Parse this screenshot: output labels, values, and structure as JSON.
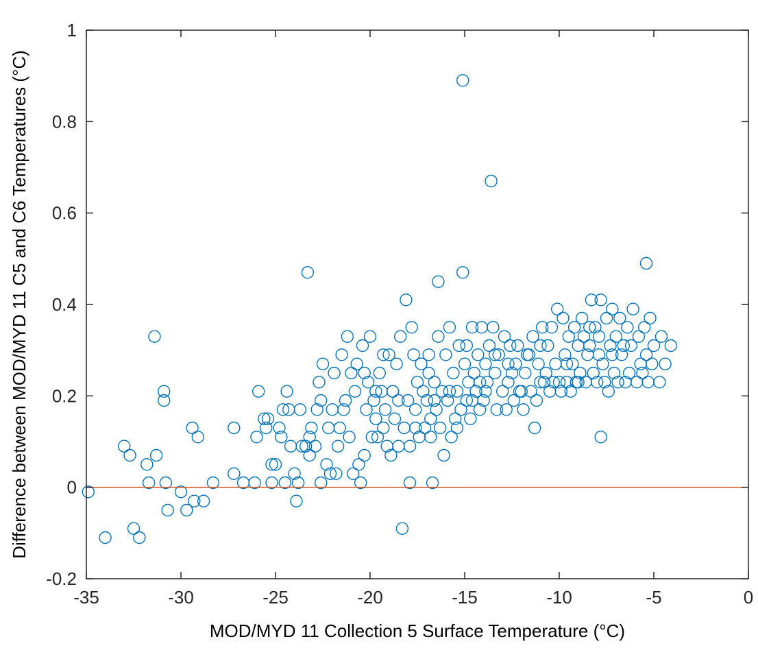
{
  "chart_data": {
    "type": "scatter",
    "title": "",
    "xlabel": "MOD/MYD 11 Collection 5 Surface Temperature (°C)",
    "ylabel": "Difference between MOD/MYD 11 C5 and C6 Temperatures (°C)",
    "xlim": [
      -35,
      0
    ],
    "ylim": [
      -0.2,
      1
    ],
    "xticks": [
      -35,
      -30,
      -25,
      -20,
      -15,
      -10,
      -5,
      0
    ],
    "yticks": [
      -0.2,
      0,
      0.2,
      0.4,
      0.6,
      0.8,
      1
    ],
    "xtick_labels": [
      "-35",
      "-30",
      "-25",
      "-20",
      "-15",
      "-10",
      "-5",
      "0"
    ],
    "ytick_labels": [
      "-0.2",
      "0",
      "0.2",
      "0.4",
      "0.6",
      "0.8",
      "1"
    ],
    "grid": false,
    "marker": "open-circle",
    "colors": {
      "points": "#0072BD",
      "reference_line": "#D95319",
      "axes": "#262626"
    },
    "reference_line": {
      "y": 0
    },
    "series": [
      {
        "points": [
          [
            -34.9,
            -0.01
          ],
          [
            -34.0,
            -0.11
          ],
          [
            -33.0,
            0.09
          ],
          [
            -32.7,
            0.07
          ],
          [
            -32.5,
            -0.09
          ],
          [
            -32.2,
            -0.11
          ],
          [
            -31.8,
            0.05
          ],
          [
            -31.7,
            0.01
          ],
          [
            -31.4,
            0.33
          ],
          [
            -31.3,
            0.07
          ],
          [
            -30.9,
            0.21
          ],
          [
            -30.9,
            0.19
          ],
          [
            -30.8,
            0.01
          ],
          [
            -30.7,
            -0.05
          ],
          [
            -30.0,
            -0.01
          ],
          [
            -29.7,
            -0.05
          ],
          [
            -29.4,
            0.13
          ],
          [
            -29.3,
            -0.03
          ],
          [
            -29.1,
            0.11
          ],
          [
            -28.8,
            -0.03
          ],
          [
            -28.3,
            0.01
          ],
          [
            -27.2,
            0.03
          ],
          [
            -27.2,
            0.13
          ],
          [
            -26.7,
            0.01
          ],
          [
            -26.1,
            0.01
          ],
          [
            -26.0,
            0.11
          ],
          [
            -25.9,
            0.21
          ],
          [
            -25.6,
            0.15
          ],
          [
            -25.5,
            0.13
          ],
          [
            -25.4,
            0.15
          ],
          [
            -25.2,
            0.01
          ],
          [
            -25.2,
            0.05
          ],
          [
            -25.0,
            0.05
          ],
          [
            -24.8,
            0.13
          ],
          [
            -24.7,
            0.11
          ],
          [
            -24.6,
            0.17
          ],
          [
            -24.5,
            0.01
          ],
          [
            -24.4,
            0.21
          ],
          [
            -24.3,
            0.17
          ],
          [
            -24.2,
            0.09
          ],
          [
            -24.0,
            0.03
          ],
          [
            -23.9,
            -0.03
          ],
          [
            -23.8,
            0.01
          ],
          [
            -23.7,
            0.17
          ],
          [
            -23.6,
            0.09
          ],
          [
            -23.4,
            0.09
          ],
          [
            -23.3,
            0.47
          ],
          [
            -23.2,
            0.07
          ],
          [
            -23.2,
            0.11
          ],
          [
            -23.1,
            0.13
          ],
          [
            -22.9,
            0.09
          ],
          [
            -22.8,
            0.17
          ],
          [
            -22.7,
            0.23
          ],
          [
            -22.6,
            0.19
          ],
          [
            -22.6,
            0.01
          ],
          [
            -22.5,
            0.27
          ],
          [
            -22.3,
            0.05
          ],
          [
            -22.2,
            0.13
          ],
          [
            -22.1,
            0.03
          ],
          [
            -22.0,
            0.17
          ],
          [
            -21.9,
            0.25
          ],
          [
            -21.8,
            0.03
          ],
          [
            -21.7,
            0.09
          ],
          [
            -21.6,
            0.13
          ],
          [
            -21.5,
            0.29
          ],
          [
            -21.4,
            0.17
          ],
          [
            -21.3,
            0.19
          ],
          [
            -21.2,
            0.33
          ],
          [
            -21.1,
            0.11
          ],
          [
            -21.0,
            0.25
          ],
          [
            -20.9,
            0.03
          ],
          [
            -20.8,
            0.21
          ],
          [
            -20.7,
            0.27
          ],
          [
            -20.6,
            0.05
          ],
          [
            -20.5,
            0.01
          ],
          [
            -20.4,
            0.31
          ],
          [
            -20.3,
            0.25
          ],
          [
            -20.2,
            0.17
          ],
          [
            -20.1,
            0.23
          ],
          [
            -20.0,
            0.33
          ],
          [
            -19.9,
            0.11
          ],
          [
            -19.8,
            0.19
          ],
          [
            -19.7,
            0.15
          ],
          [
            -19.6,
            0.11
          ],
          [
            -19.5,
            0.25
          ],
          [
            -19.4,
            0.21
          ],
          [
            -19.3,
            0.13
          ],
          [
            -19.2,
            0.17
          ],
          [
            -19.1,
            0.09
          ],
          [
            -19.0,
            0.29
          ],
          [
            -18.9,
            0.07
          ],
          [
            -18.8,
            0.21
          ],
          [
            -18.7,
            0.15
          ],
          [
            -18.6,
            0.27
          ],
          [
            -18.5,
            0.09
          ],
          [
            -18.4,
            0.33
          ],
          [
            -18.3,
            -0.09
          ],
          [
            -18.2,
            0.13
          ],
          [
            -18.1,
            0.41
          ],
          [
            -18.0,
            0.19
          ],
          [
            -17.9,
            0.01
          ],
          [
            -17.8,
            0.35
          ],
          [
            -17.7,
            0.29
          ],
          [
            -17.6,
            0.17
          ],
          [
            -17.5,
            0.23
          ],
          [
            -17.4,
            0.11
          ],
          [
            -17.3,
            0.27
          ],
          [
            -17.2,
            0.21
          ],
          [
            -17.1,
            0.13
          ],
          [
            -17.0,
            0.19
          ],
          [
            -16.9,
            0.25
          ],
          [
            -16.8,
            0.15
          ],
          [
            -16.7,
            0.01
          ],
          [
            -16.6,
            0.23
          ],
          [
            -16.5,
            0.17
          ],
          [
            -16.4,
            0.33
          ],
          [
            -16.4,
            0.45
          ],
          [
            -16.3,
            0.13
          ],
          [
            -16.2,
            0.21
          ],
          [
            -16.1,
            0.07
          ],
          [
            -16.0,
            0.29
          ],
          [
            -15.9,
            0.19
          ],
          [
            -15.8,
            0.35
          ],
          [
            -15.7,
            0.11
          ],
          [
            -15.6,
            0.25
          ],
          [
            -15.5,
            0.15
          ],
          [
            -15.4,
            0.21
          ],
          [
            -15.3,
            0.31
          ],
          [
            -15.2,
            0.17
          ],
          [
            -15.1,
            0.89
          ],
          [
            -15.1,
            0.47
          ],
          [
            -15.0,
            0.27
          ],
          [
            -14.9,
            0.19
          ],
          [
            -14.8,
            0.23
          ],
          [
            -14.7,
            0.15
          ],
          [
            -14.6,
            0.35
          ],
          [
            -14.5,
            0.25
          ],
          [
            -14.4,
            0.21
          ],
          [
            -14.3,
            0.29
          ],
          [
            -14.2,
            0.17
          ],
          [
            -14.1,
            0.35
          ],
          [
            -14.0,
            0.19
          ],
          [
            -13.9,
            0.27
          ],
          [
            -13.8,
            0.23
          ],
          [
            -13.7,
            0.31
          ],
          [
            -13.6,
            0.67
          ],
          [
            -13.5,
            0.35
          ],
          [
            -13.4,
            0.25
          ],
          [
            -13.3,
            0.17
          ],
          [
            -13.2,
            0.29
          ],
          [
            -13.0,
            0.21
          ],
          [
            -12.9,
            0.33
          ],
          [
            -12.8,
            0.17
          ],
          [
            -12.7,
            0.23
          ],
          [
            -12.6,
            0.31
          ],
          [
            -12.4,
            0.19
          ],
          [
            -12.3,
            0.27
          ],
          [
            -12.2,
            0.31
          ],
          [
            -12.0,
            0.21
          ],
          [
            -11.9,
            0.17
          ],
          [
            -11.8,
            0.25
          ],
          [
            -11.6,
            0.29
          ],
          [
            -11.5,
            0.21
          ],
          [
            -11.4,
            0.33
          ],
          [
            -11.3,
            0.13
          ],
          [
            -11.2,
            0.19
          ],
          [
            -11.1,
            0.27
          ],
          [
            -11.0,
            0.23
          ],
          [
            -10.9,
            0.35
          ],
          [
            -10.7,
            0.25
          ],
          [
            -10.6,
            0.31
          ],
          [
            -10.5,
            0.21
          ],
          [
            -10.4,
            0.35
          ],
          [
            -10.2,
            0.27
          ],
          [
            -10.1,
            0.39
          ],
          [
            -10.0,
            0.23
          ],
          [
            -9.9,
            0.21
          ],
          [
            -9.8,
            0.37
          ],
          [
            -9.7,
            0.29
          ],
          [
            -9.6,
            0.23
          ],
          [
            -9.5,
            0.33
          ],
          [
            -9.4,
            0.21
          ],
          [
            -9.3,
            0.27
          ],
          [
            -9.2,
            0.35
          ],
          [
            -9.1,
            0.23
          ],
          [
            -9.0,
            0.31
          ],
          [
            -8.9,
            0.25
          ],
          [
            -8.8,
            0.37
          ],
          [
            -8.7,
            0.33
          ],
          [
            -8.6,
            0.23
          ],
          [
            -8.5,
            0.29
          ],
          [
            -8.4,
            0.31
          ],
          [
            -8.3,
            0.41
          ],
          [
            -8.2,
            0.25
          ],
          [
            -8.1,
            0.35
          ],
          [
            -8.0,
            0.23
          ],
          [
            -7.9,
            0.29
          ],
          [
            -7.8,
            0.11
          ],
          [
            -7.8,
            0.41
          ],
          [
            -7.7,
            0.27
          ],
          [
            -7.6,
            0.23
          ],
          [
            -7.5,
            0.37
          ],
          [
            -7.4,
            0.21
          ],
          [
            -7.3,
            0.31
          ],
          [
            -7.2,
            0.39
          ],
          [
            -7.1,
            0.25
          ],
          [
            -7.0,
            0.33
          ],
          [
            -6.9,
            0.23
          ],
          [
            -6.8,
            0.37
          ],
          [
            -6.7,
            0.29
          ],
          [
            -6.6,
            0.31
          ],
          [
            -6.4,
            0.35
          ],
          [
            -6.3,
            0.25
          ],
          [
            -6.2,
            0.31
          ],
          [
            -6.1,
            0.39
          ],
          [
            -5.9,
            0.23
          ],
          [
            -5.8,
            0.33
          ],
          [
            -5.7,
            0.27
          ],
          [
            -5.6,
            0.25
          ],
          [
            -5.5,
            0.35
          ],
          [
            -5.4,
            0.49
          ],
          [
            -5.4,
            0.29
          ],
          [
            -5.3,
            0.23
          ],
          [
            -5.2,
            0.37
          ],
          [
            -5.1,
            0.27
          ],
          [
            -5.0,
            0.31
          ],
          [
            -4.7,
            0.23
          ],
          [
            -4.6,
            0.33
          ],
          [
            -4.4,
            0.27
          ],
          [
            -4.1,
            0.31
          ],
          [
            -19.3,
            0.29
          ],
          [
            -18.8,
            0.21
          ],
          [
            -17.6,
            0.13
          ],
          [
            -16.9,
            0.29
          ],
          [
            -16.6,
            0.19
          ],
          [
            -15.4,
            0.13
          ],
          [
            -14.9,
            0.31
          ],
          [
            -14.2,
            0.23
          ],
          [
            -13.4,
            0.29
          ],
          [
            -12.7,
            0.27
          ],
          [
            -12.1,
            0.21
          ],
          [
            -11.7,
            0.29
          ],
          [
            -10.8,
            0.23
          ],
          [
            -10.3,
            0.23
          ],
          [
            -9.6,
            0.27
          ],
          [
            -9.0,
            0.23
          ],
          [
            -8.4,
            0.35
          ],
          [
            -7.9,
            0.33
          ],
          [
            -7.2,
            0.29
          ],
          [
            -6.5,
            0.23
          ],
          [
            -20.3,
            0.07
          ],
          [
            -19.7,
            0.21
          ],
          [
            -18.5,
            0.19
          ],
          [
            -17.9,
            0.09
          ],
          [
            -16.8,
            0.11
          ],
          [
            -15.8,
            0.21
          ],
          [
            -14.6,
            0.19
          ],
          [
            -13.9,
            0.21
          ],
          [
            -12.5,
            0.25
          ],
          [
            -11.0,
            0.31
          ]
        ]
      }
    ]
  }
}
